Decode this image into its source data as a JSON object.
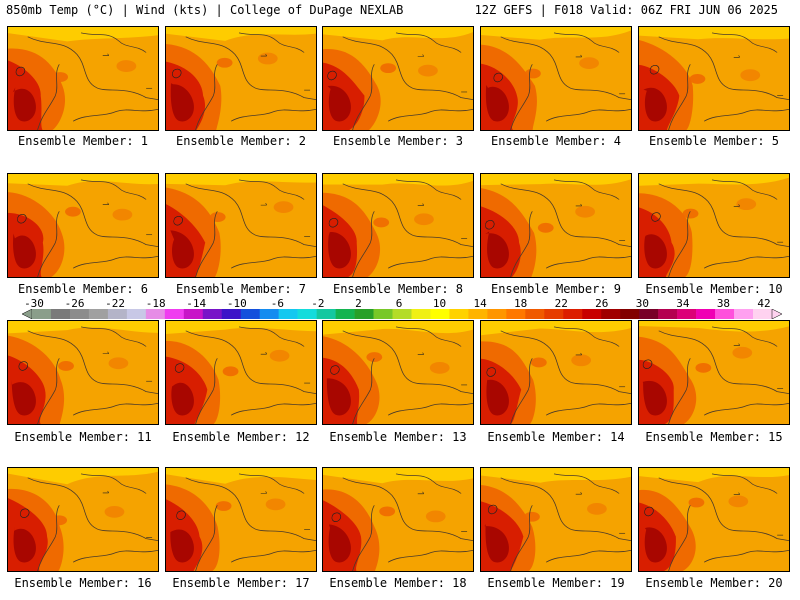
{
  "header": {
    "left": "850mb Temp (°C) | Wind (kts) | College of DuPage NEXLAB",
    "right": "12Z GEFS | F018 Valid: 06Z FRI JUN 06 2025"
  },
  "panels": [
    {
      "label": "Ensemble Member: 1"
    },
    {
      "label": "Ensemble Member: 2"
    },
    {
      "label": "Ensemble Member: 3"
    },
    {
      "label": "Ensemble Member: 4"
    },
    {
      "label": "Ensemble Member: 5"
    },
    {
      "label": "Ensemble Member: 6"
    },
    {
      "label": "Ensemble Member: 7"
    },
    {
      "label": "Ensemble Member: 8"
    },
    {
      "label": "Ensemble Member: 9"
    },
    {
      "label": "Ensemble Member: 10"
    },
    {
      "label": "Ensemble Member: 11"
    },
    {
      "label": "Ensemble Member: 12"
    },
    {
      "label": "Ensemble Member: 13"
    },
    {
      "label": "Ensemble Member: 14"
    },
    {
      "label": "Ensemble Member: 15"
    },
    {
      "label": "Ensemble Member: 16"
    },
    {
      "label": "Ensemble Member: 17"
    },
    {
      "label": "Ensemble Member: 18"
    },
    {
      "label": "Ensemble Member: 19"
    },
    {
      "label": "Ensemble Member: 20"
    }
  ],
  "colorbar": {
    "ticks": [
      "-30",
      "-26",
      "-22",
      "-18",
      "-14",
      "-10",
      "-6",
      "-2",
      "2",
      "6",
      "10",
      "14",
      "18",
      "22",
      "26",
      "30",
      "34",
      "38",
      "42"
    ],
    "colors": [
      "#8a9e8a",
      "#7a7a7a",
      "#8c8c8c",
      "#a0a0a0",
      "#b4b4c8",
      "#c8c8e6",
      "#e68ce6",
      "#f03cf0",
      "#c814c8",
      "#7814c8",
      "#3c14c8",
      "#1450dc",
      "#148cf0",
      "#14c8f0",
      "#14dcdc",
      "#14c8a0",
      "#14b450",
      "#28a028",
      "#78c828",
      "#b4dc28",
      "#f0f014",
      "#ffff00",
      "#ffd200",
      "#ffb400",
      "#ff9600",
      "#ff7800",
      "#f05a00",
      "#e63c00",
      "#dc1e00",
      "#c80000",
      "#a00000",
      "#820000",
      "#780028",
      "#b40050",
      "#dc0078",
      "#f000b4",
      "#ff50dc",
      "#ffa0f0",
      "#ffd2f0"
    ]
  },
  "colors": {
    "field_base": "#f5a300",
    "field_warm": "#ef6a00",
    "field_hot": "#d81e00",
    "field_hottest": "#9c0000",
    "field_cool": "#ffd400",
    "contour": "#4a3a2a"
  }
}
